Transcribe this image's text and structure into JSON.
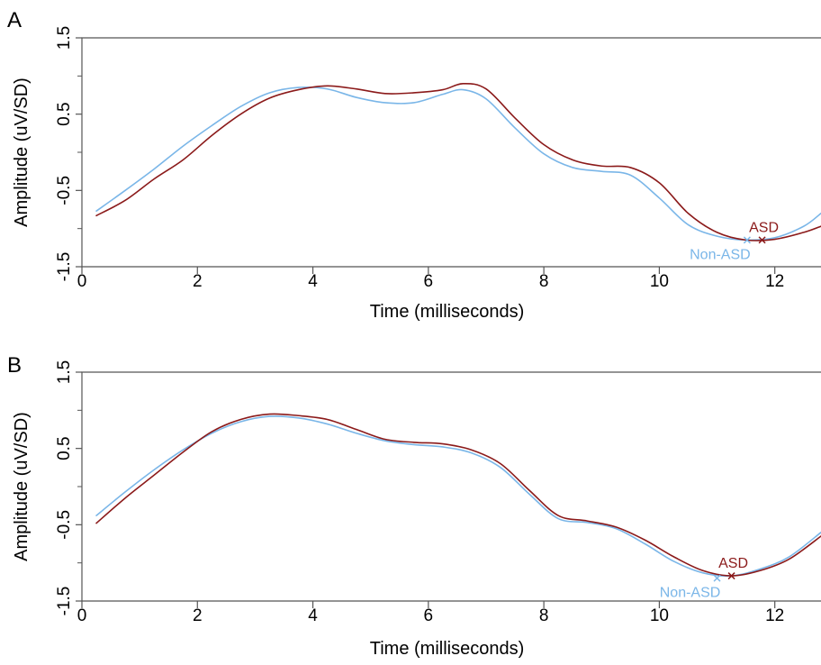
{
  "chart_data": [
    {
      "type": "line",
      "panel_label": "A",
      "xlabel": "Time (milliseconds)",
      "ylabel": "Amplitude (uV/SD)",
      "xlim": [
        0,
        12.8
      ],
      "ylim": [
        -1.5,
        1.5
      ],
      "xticks": [
        0,
        2,
        4,
        6,
        8,
        10,
        12
      ],
      "yticks": [
        -1.5,
        -0.5,
        0.5,
        1.5
      ],
      "ytick_labels": [
        "-1.5",
        "-0.5",
        "0.5",
        "1.5"
      ],
      "grid": false,
      "colors": {
        "ASD": "#8b1a1a",
        "Non-ASD": "#7ab6e8"
      },
      "series": [
        {
          "name": "ASD",
          "x": [
            0.25,
            0.75,
            1.25,
            1.75,
            2.25,
            2.75,
            3.25,
            3.75,
            4.25,
            4.75,
            5.25,
            5.75,
            6.25,
            6.6,
            7.0,
            7.5,
            8.0,
            8.5,
            9.0,
            9.5,
            10.0,
            10.5,
            11.0,
            11.5,
            12.0,
            12.5,
            12.8
          ],
          "y": [
            -0.83,
            -0.63,
            -0.35,
            -0.1,
            0.22,
            0.5,
            0.71,
            0.82,
            0.87,
            0.83,
            0.77,
            0.78,
            0.82,
            0.9,
            0.83,
            0.45,
            0.1,
            -0.1,
            -0.18,
            -0.2,
            -0.4,
            -0.8,
            -1.05,
            -1.15,
            -1.14,
            -1.05,
            -0.97
          ]
        },
        {
          "name": "Non-ASD",
          "x": [
            0.25,
            0.75,
            1.25,
            1.75,
            2.25,
            2.75,
            3.25,
            3.75,
            4.25,
            4.75,
            5.25,
            5.75,
            6.25,
            6.6,
            7.0,
            7.5,
            8.0,
            8.5,
            9.0,
            9.5,
            10.0,
            10.5,
            11.0,
            11.5,
            12.0,
            12.5,
            12.8
          ],
          "y": [
            -0.77,
            -0.5,
            -0.22,
            0.08,
            0.35,
            0.6,
            0.78,
            0.85,
            0.83,
            0.72,
            0.65,
            0.65,
            0.76,
            0.82,
            0.7,
            0.32,
            -0.02,
            -0.2,
            -0.25,
            -0.3,
            -0.6,
            -0.95,
            -1.1,
            -1.15,
            -1.12,
            -0.97,
            -0.8
          ]
        }
      ],
      "markers": [
        {
          "label": "ASD",
          "x": 11.78,
          "y": -1.15
        },
        {
          "label": "Non-ASD",
          "x": 11.52,
          "y": -1.15
        }
      ]
    },
    {
      "type": "line",
      "panel_label": "B",
      "xlabel": "Time (milliseconds)",
      "ylabel": "Amplitude (uV/SD)",
      "xlim": [
        0,
        12.8
      ],
      "ylim": [
        -1.5,
        1.5
      ],
      "xticks": [
        0,
        2,
        4,
        6,
        8,
        10,
        12
      ],
      "yticks": [
        -1.5,
        -0.5,
        0.5,
        1.5
      ],
      "ytick_labels": [
        "-1.5",
        "-0.5",
        "0.5",
        "1.5"
      ],
      "grid": false,
      "colors": {
        "ASD": "#8b1a1a",
        "Non-ASD": "#7ab6e8"
      },
      "series": [
        {
          "name": "ASD",
          "x": [
            0.25,
            0.75,
            1.25,
            1.75,
            2.25,
            2.75,
            3.25,
            3.75,
            4.25,
            4.75,
            5.25,
            5.75,
            6.25,
            6.75,
            7.25,
            7.75,
            8.25,
            8.75,
            9.25,
            9.75,
            10.25,
            10.75,
            11.25,
            11.75,
            12.25,
            12.8
          ],
          "y": [
            -0.48,
            -0.15,
            0.15,
            0.45,
            0.72,
            0.88,
            0.95,
            0.93,
            0.88,
            0.75,
            0.62,
            0.58,
            0.56,
            0.48,
            0.3,
            -0.05,
            -0.38,
            -0.45,
            -0.53,
            -0.7,
            -0.92,
            -1.1,
            -1.17,
            -1.1,
            -0.95,
            -0.65
          ]
        },
        {
          "name": "Non-ASD",
          "x": [
            0.25,
            0.75,
            1.25,
            1.75,
            2.25,
            2.75,
            3.25,
            3.75,
            4.25,
            4.75,
            5.25,
            5.75,
            6.25,
            6.75,
            7.25,
            7.75,
            8.25,
            8.75,
            9.25,
            9.75,
            10.25,
            10.75,
            11.25,
            11.75,
            12.25,
            12.8
          ],
          "y": [
            -0.38,
            -0.07,
            0.22,
            0.48,
            0.7,
            0.85,
            0.92,
            0.9,
            0.82,
            0.7,
            0.6,
            0.55,
            0.52,
            0.44,
            0.25,
            -0.1,
            -0.42,
            -0.47,
            -0.55,
            -0.75,
            -0.98,
            -1.13,
            -1.17,
            -1.08,
            -0.92,
            -0.6
          ]
        }
      ],
      "markers": [
        {
          "label": "ASD",
          "x": 11.25,
          "y": -1.17
        },
        {
          "label": "Non-ASD",
          "x": 11.0,
          "y": -1.2
        }
      ]
    }
  ]
}
